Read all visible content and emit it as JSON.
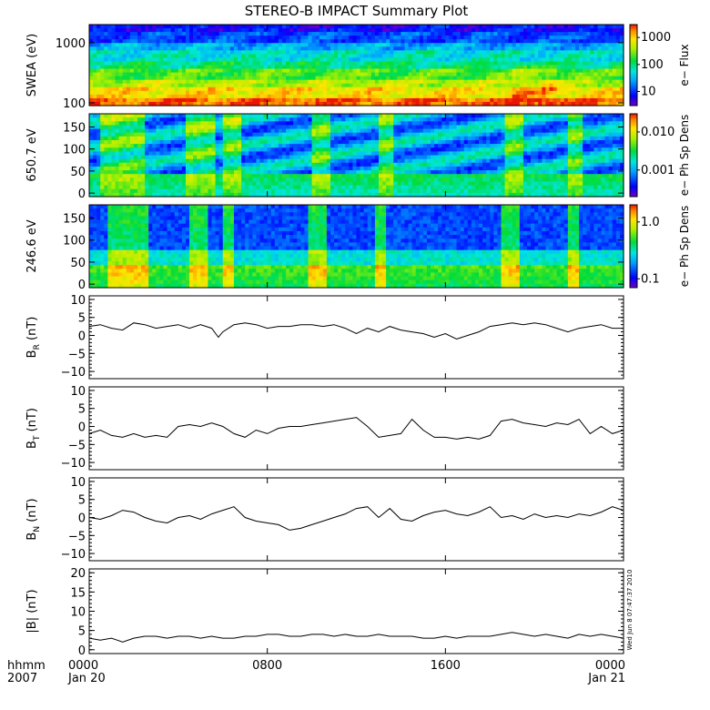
{
  "chart_data": [
    {
      "type": "heatmap",
      "id": "swea",
      "title": "STEREO-B IMPACT Summary Plot",
      "ylabel": "SWEA (eV)",
      "ylog": true,
      "ylim": [
        90,
        2000
      ],
      "yticks": [
        {
          "v": 100,
          "t": "100"
        },
        {
          "v": 1000,
          "t": "1000"
        }
      ],
      "colorbar": {
        "label": "e− Flux",
        "log": true,
        "range": [
          3,
          3000
        ],
        "ticks": [
          {
            "v": 10,
            "t": "10"
          },
          {
            "v": 100,
            "t": "100"
          },
          {
            "v": 1000,
            "t": "1000"
          }
        ]
      },
      "bands": [
        {
          "y": 100,
          "level": 0.95
        },
        {
          "y": 130,
          "level": 0.82
        },
        {
          "y": 180,
          "level": 0.72
        },
        {
          "y": 260,
          "level": 0.62
        },
        {
          "y": 380,
          "level": 0.5
        },
        {
          "y": 560,
          "level": 0.42
        },
        {
          "y": 800,
          "level": 0.32
        },
        {
          "y": 1200,
          "level": 0.2
        },
        {
          "y": 1800,
          "level": 0.12
        }
      ]
    },
    {
      "type": "heatmap",
      "id": "pad650",
      "ylabel": "650.7 eV",
      "ylim": [
        -8,
        180
      ],
      "yticks": [
        {
          "v": 0,
          "t": "0"
        },
        {
          "v": 50,
          "t": "50"
        },
        {
          "v": 100,
          "t": "100"
        },
        {
          "v": 150,
          "t": "150"
        }
      ],
      "colorbar": {
        "label": "e− Ph Sp Dens",
        "log": true,
        "range": [
          0.0002,
          0.03
        ],
        "ticks": [
          {
            "v": 0.001,
            "t": "0.001"
          },
          {
            "v": 0.01,
            "t": "0.010"
          }
        ]
      },
      "active_intervals": [
        [
          0.5,
          2.5
        ],
        [
          4.4,
          5.6
        ],
        [
          6.0,
          6.8
        ],
        [
          10.0,
          10.8
        ],
        [
          13.0,
          13.6
        ],
        [
          18.6,
          19.5
        ],
        [
          21.5,
          22.2
        ]
      ]
    },
    {
      "type": "heatmap",
      "id": "pad246",
      "ylabel": "246.6 eV",
      "ylim": [
        -8,
        180
      ],
      "yticks": [
        {
          "v": 0,
          "t": "0"
        },
        {
          "v": 50,
          "t": "50"
        },
        {
          "v": 100,
          "t": "100"
        },
        {
          "v": 150,
          "t": "150"
        }
      ],
      "colorbar": {
        "label": "e− Ph Sp Dens",
        "log": true,
        "range": [
          0.07,
          2.0
        ],
        "ticks": [
          {
            "v": 0.1,
            "t": "0.1"
          },
          {
            "v": 1.0,
            "t": "1.0"
          }
        ]
      },
      "active_intervals": [
        [
          0.8,
          2.6
        ],
        [
          4.5,
          5.4
        ],
        [
          6.0,
          6.5
        ],
        [
          9.8,
          10.6
        ],
        [
          12.9,
          13.4
        ],
        [
          18.5,
          19.4
        ],
        [
          21.5,
          22.0
        ]
      ]
    },
    {
      "type": "line",
      "id": "br",
      "ylabel": "B",
      "ylabel_sub": "R",
      "ylabel_unit": " (nT)",
      "ylim": [
        -12,
        11
      ],
      "yticks": [
        {
          "v": -10,
          "t": "−10"
        },
        {
          "v": -5,
          "t": "−5"
        },
        {
          "v": 0,
          "t": "0"
        },
        {
          "v": 5,
          "t": "5"
        },
        {
          "v": 10,
          "t": "10"
        }
      ],
      "x": [
        0,
        0.5,
        1,
        1.5,
        2,
        2.5,
        3,
        3.5,
        4,
        4.5,
        5,
        5.5,
        5.8,
        6,
        6.5,
        7,
        7.5,
        8,
        8.5,
        9,
        9.5,
        10,
        10.5,
        11,
        11.5,
        12,
        12.5,
        13,
        13.5,
        14,
        14.5,
        15,
        15.5,
        16,
        16.5,
        17,
        17.5,
        18,
        18.5,
        19,
        19.5,
        20,
        20.5,
        21,
        21.5,
        22,
        22.5,
        23,
        23.5,
        24
      ],
      "values": [
        2.5,
        3,
        2,
        1.5,
        3.5,
        3,
        2,
        2.5,
        3,
        2,
        3,
        2,
        -0.5,
        1,
        3,
        3.5,
        3,
        2,
        2.5,
        2.5,
        3,
        3,
        2.5,
        3,
        2,
        0.5,
        2,
        1,
        2.5,
        1.5,
        1,
        0.5,
        -0.5,
        0.5,
        -1,
        0,
        1,
        2.5,
        3,
        3.5,
        3,
        3.5,
        3,
        2,
        1,
        2,
        2.5,
        3,
        2,
        2
      ]
    },
    {
      "type": "line",
      "id": "bt",
      "ylabel": "B",
      "ylabel_sub": "T",
      "ylabel_unit": " (nT)",
      "ylim": [
        -12,
        11
      ],
      "yticks": [
        {
          "v": -10,
          "t": "−10"
        },
        {
          "v": -5,
          "t": "−5"
        },
        {
          "v": 0,
          "t": "0"
        },
        {
          "v": 5,
          "t": "5"
        },
        {
          "v": 10,
          "t": "10"
        }
      ],
      "x": [
        0,
        0.5,
        1,
        1.5,
        2,
        2.5,
        3,
        3.5,
        4,
        4.5,
        5,
        5.5,
        6,
        6.5,
        7,
        7.5,
        8,
        8.5,
        9,
        9.5,
        10,
        10.5,
        11,
        11.5,
        12,
        12.5,
        13,
        13.5,
        14,
        14.5,
        15,
        15.5,
        16,
        16.5,
        17,
        17.5,
        18,
        18.5,
        19,
        19.5,
        20,
        20.5,
        21,
        21.5,
        22,
        22.5,
        23,
        23.5,
        24
      ],
      "values": [
        -2,
        -1,
        -2.5,
        -3,
        -2,
        -3,
        -2.5,
        -3,
        0,
        0.5,
        0,
        1,
        0,
        -2,
        -3,
        -1,
        -2,
        -0.5,
        0,
        0,
        0.5,
        1,
        1.5,
        2,
        2.5,
        0,
        -3,
        -2.5,
        -2,
        2,
        -1,
        -3,
        -3,
        -3.5,
        -3,
        -3.5,
        -2.5,
        1.5,
        2,
        1,
        0.5,
        0,
        1,
        0.5,
        2,
        -2,
        0,
        -2,
        -1
      ]
    },
    {
      "type": "line",
      "id": "bn",
      "ylabel": "B",
      "ylabel_sub": "N",
      "ylabel_unit": " (nT)",
      "ylim": [
        -12,
        11
      ],
      "yticks": [
        {
          "v": -10,
          "t": "−10"
        },
        {
          "v": -5,
          "t": "−5"
        },
        {
          "v": 0,
          "t": "0"
        },
        {
          "v": 5,
          "t": "5"
        },
        {
          "v": 10,
          "t": "10"
        }
      ],
      "x": [
        0,
        0.5,
        1,
        1.5,
        2,
        2.5,
        3,
        3.5,
        4,
        4.5,
        5,
        5.5,
        6,
        6.5,
        7,
        7.5,
        8,
        8.5,
        9,
        9.5,
        10,
        10.5,
        11,
        11.5,
        12,
        12.5,
        13,
        13.5,
        14,
        14.5,
        15,
        15.5,
        16,
        16.5,
        17,
        17.5,
        18,
        18.5,
        19,
        19.5,
        20,
        20.5,
        21,
        21.5,
        22,
        22.5,
        23,
        23.5,
        24
      ],
      "values": [
        0,
        -0.5,
        0.5,
        2,
        1.5,
        0,
        -1,
        -1.5,
        0,
        0.5,
        -0.5,
        1,
        2,
        3,
        0,
        -1,
        -1.5,
        -2,
        -3.5,
        -3,
        -2,
        -1,
        0,
        1,
        2.5,
        3,
        0,
        2.5,
        -0.5,
        -1,
        0.5,
        1.5,
        2,
        1,
        0.5,
        1.5,
        3,
        0,
        0.5,
        -0.5,
        1,
        0,
        0.5,
        0,
        1,
        0.5,
        1.5,
        3,
        2
      ]
    },
    {
      "type": "line",
      "id": "bmag",
      "ylabel": "|B| (nT)",
      "ylim": [
        -1,
        21
      ],
      "yticks": [
        {
          "v": 0,
          "t": "0"
        },
        {
          "v": 5,
          "t": "5"
        },
        {
          "v": 10,
          "t": "10"
        },
        {
          "v": 15,
          "t": "15"
        },
        {
          "v": 20,
          "t": "20"
        }
      ],
      "x": [
        0,
        0.5,
        1,
        1.5,
        2,
        2.5,
        3,
        3.5,
        4,
        4.5,
        5,
        5.5,
        6,
        6.5,
        7,
        7.5,
        8,
        8.5,
        9,
        9.5,
        10,
        10.5,
        11,
        11.5,
        12,
        12.5,
        13,
        13.5,
        14,
        14.5,
        15,
        15.5,
        16,
        16.5,
        17,
        17.5,
        18,
        18.5,
        19,
        19.5,
        20,
        20.5,
        21,
        21.5,
        22,
        22.5,
        23,
        23.5,
        24
      ],
      "values": [
        3,
        2.5,
        3,
        2,
        3,
        3.5,
        3.5,
        3,
        3.5,
        3.5,
        3,
        3.5,
        3,
        3,
        3.5,
        3.5,
        4,
        4,
        3.5,
        3.5,
        4,
        4,
        3.5,
        4,
        3.5,
        3.5,
        4,
        3.5,
        3.5,
        3.5,
        3,
        3,
        3.5,
        3,
        3.5,
        3.5,
        3.5,
        4,
        4.5,
        4,
        3.5,
        4,
        3.5,
        3,
        4,
        3.5,
        4,
        3.5,
        3
      ]
    }
  ],
  "x_axis": {
    "row_labels": [
      "hhmm",
      "2007"
    ],
    "ticks": [
      {
        "v": 0,
        "t": "0000",
        "d": "Jan 20"
      },
      {
        "v": 8,
        "t": "0800",
        "d": ""
      },
      {
        "v": 16,
        "t": "1600",
        "d": ""
      },
      {
        "v": 24,
        "t": "0000",
        "d": "Jan 21"
      }
    ]
  },
  "stamp": "Wed Jun  8 07:47:37 2010"
}
